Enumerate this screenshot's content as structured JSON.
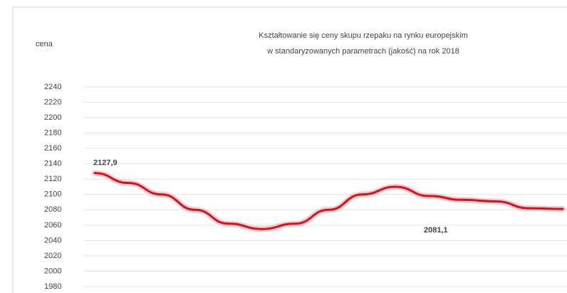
{
  "chart_data": {
    "type": "line",
    "title": [
      "Kształtowanie się ceny skupu rzepaku na rynku europejskim",
      "w standaryzowanych parametrach (jakość) na rok 2018"
    ],
    "y_label": "cena",
    "categories": [
      null,
      null,
      null,
      null,
      null,
      null,
      null,
      null,
      null,
      null,
      null,
      null,
      null,
      null,
      null
    ],
    "series": [
      {
        "color": "#d8101a",
        "values": [
          2127.9,
          2115,
          2100,
          2080,
          2062,
          2055,
          2062,
          2080,
          2100,
          2110,
          2098,
          2093,
          2091,
          2082,
          2081.1
        ],
        "value_labels": [
          "2127,9",
          null,
          null,
          null,
          null,
          null,
          null,
          null,
          null,
          null,
          null,
          null,
          null,
          null,
          "2081,1"
        ]
      }
    ],
    "ylim": [
      1980,
      2240
    ],
    "yticks": [
      1980,
      2000,
      2020,
      2040,
      2060,
      2080,
      2100,
      2120,
      2140,
      2160,
      2180,
      2200,
      2220,
      2240
    ],
    "grid": true
  }
}
